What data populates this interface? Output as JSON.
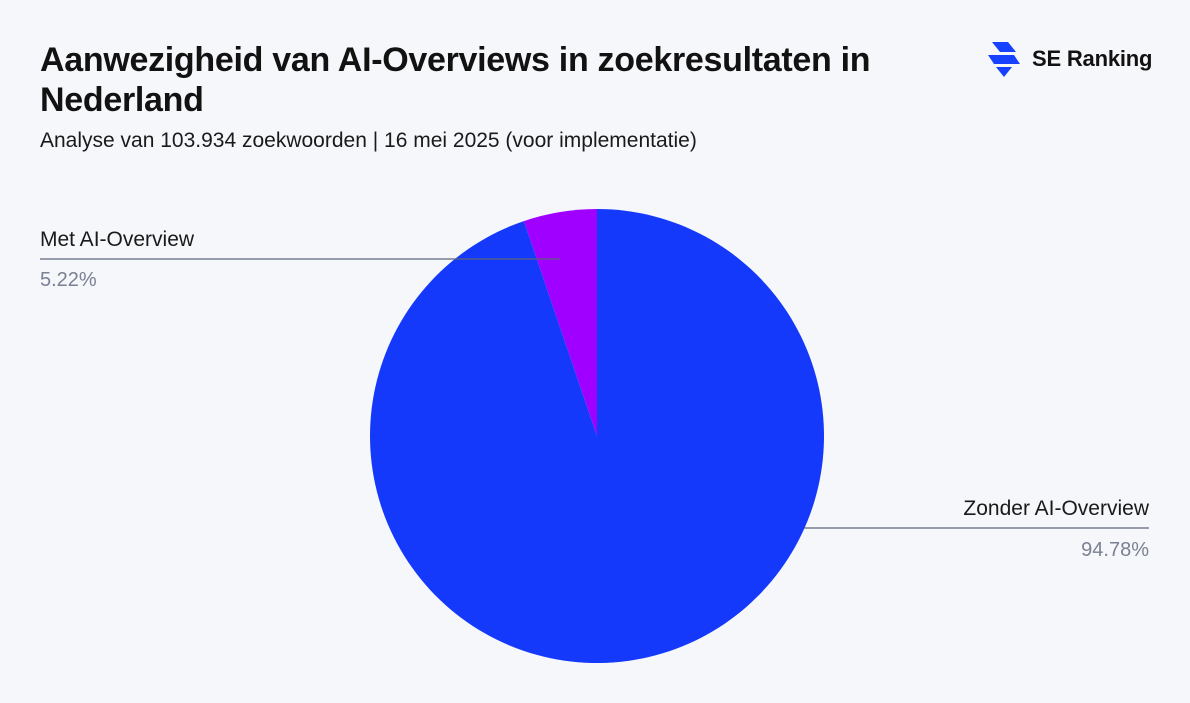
{
  "header": {
    "title": "Aanwezigheid van AI-Overviews in zoekresultaten in Nederland",
    "subtitle": "Analyse van 103.934 zoekwoorden | 16 mei 2025 (voor implementatie)"
  },
  "brand": {
    "name": "SE Ranking",
    "icon": "se-ranking-bolt-icon",
    "color": "#1641ff"
  },
  "chart_data": {
    "type": "pie",
    "title": "Aanwezigheid van AI-Overviews in zoekresultaten in Nederland",
    "subtitle": "Analyse van 103.934 zoekwoorden | 16 mei 2025 (voor implementatie)",
    "slices": [
      {
        "label": "Met AI-Overview",
        "value": 5.22,
        "value_label": "5.22%",
        "color": "#a000ff",
        "label_side": "left"
      },
      {
        "label": "Zonder AI-Overview",
        "value": 94.78,
        "value_label": "94.78%",
        "color": "#1539fb",
        "label_side": "right"
      }
    ],
    "start": "12 o'clock",
    "direction": "counterclockwise"
  }
}
